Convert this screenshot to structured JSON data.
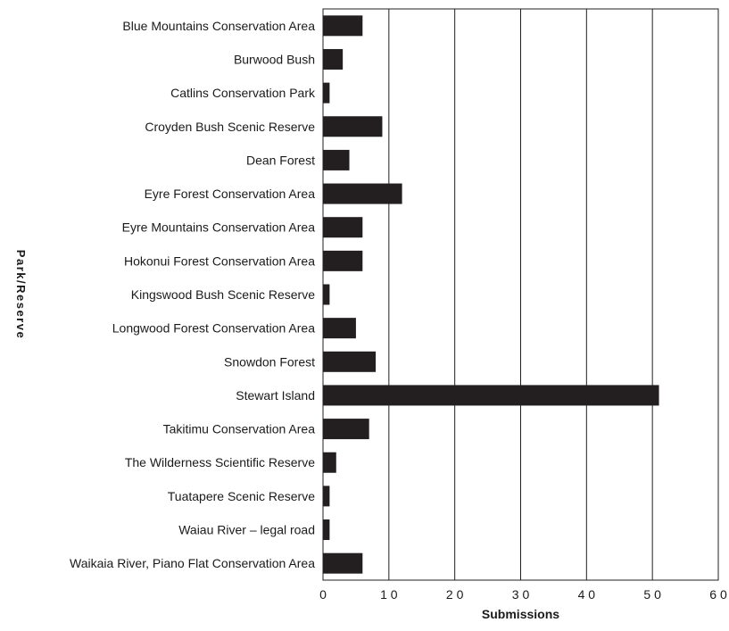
{
  "chart_data": {
    "type": "bar",
    "orientation": "horizontal",
    "xlabel": "Submissions",
    "ylabel": "Park/Reserve",
    "xlim": [
      0,
      60
    ],
    "xticks": [
      "0",
      "1 0",
      "2 0",
      "3 0",
      "4 0",
      "5 0",
      "6 0"
    ],
    "xtick_values": [
      0,
      10,
      20,
      30,
      40,
      50,
      60
    ],
    "grid": "vertical",
    "bar_color": "#231f20",
    "categories": [
      "Blue Mountains Conservation Area",
      "Burwood Bush",
      "Catlins Conservation Park",
      "Croyden Bush Scenic Reserve",
      "Dean Forest",
      "Eyre Forest Conservation Area",
      "Eyre Mountains Conservation Area",
      "Hokonui Forest Conservation Area",
      "Kingswood Bush Scenic Reserve",
      "Longwood Forest Conservation Area",
      "Snowdon Forest",
      "Stewart Island",
      "Takitimu Conservation Area",
      "The Wilderness Scientific Reserve",
      "Tuatapere Scenic Reserve",
      "Waiau River – legal road",
      "Waikaia River, Piano Flat Conservation Area"
    ],
    "values": [
      6,
      3,
      1,
      9,
      4,
      12,
      6,
      6,
      1,
      5,
      8,
      51,
      7,
      2,
      1,
      1,
      6
    ]
  }
}
